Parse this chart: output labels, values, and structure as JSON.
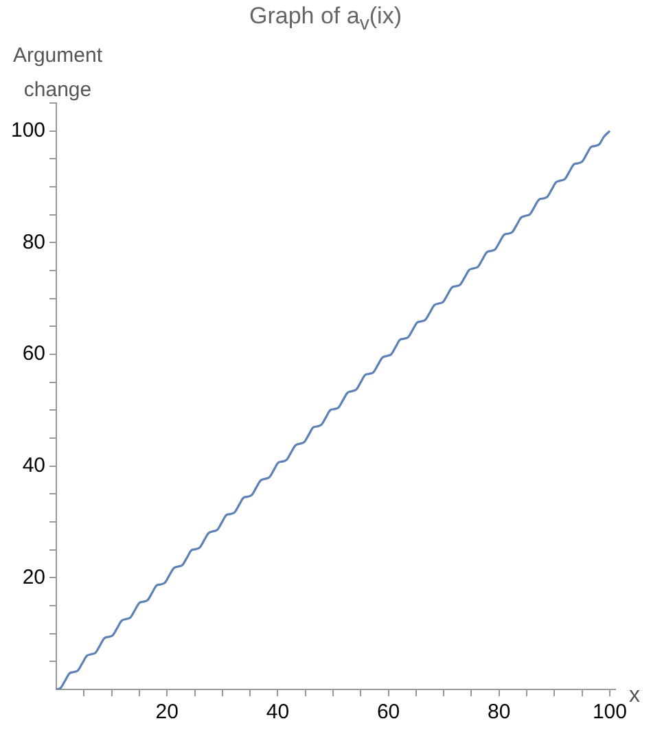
{
  "chart_data": {
    "type": "line",
    "title": "Graph of a$_{v}$(ix)",
    "xlabel": "x",
    "ylabel": "Argument change",
    "x": [
      0,
      0.8,
      1.6,
      2.4,
      3.1,
      3.9,
      4.7,
      5.5,
      6.3,
      7.1,
      7.9,
      8.7,
      9.4,
      10.2,
      11.0,
      11.8,
      12.6,
      13.4,
      14.2,
      15.0,
      15.7,
      16.5,
      17.3,
      18.1,
      18.8,
      19.6,
      20.4,
      21.2,
      22.0,
      22.8,
      23.6,
      24.4,
      25.1,
      25.9,
      26.7,
      27.5,
      28.3,
      29.1,
      29.9,
      30.7,
      31.4,
      32.2,
      33.0,
      33.8,
      34.5,
      35.3,
      36.1,
      36.9,
      37.7,
      38.5,
      39.3,
      40.1,
      40.8,
      41.6,
      42.4,
      43.2,
      44.0,
      44.8,
      45.6,
      46.4,
      47.1,
      47.9,
      48.7,
      49.5,
      50.2,
      51.0,
      51.8,
      52.6,
      53.4,
      54.2,
      55.0,
      55.8,
      56.5,
      57.3,
      58.1,
      58.9,
      59.7,
      60.5,
      61.3,
      62.1,
      62.8,
      63.6,
      64.4,
      65.2,
      65.9,
      66.7,
      67.5,
      68.3,
      69.1,
      69.9,
      70.7,
      71.5,
      72.2,
      73.0,
      73.8,
      74.6,
      75.4,
      76.2,
      77.0,
      77.8,
      78.5,
      79.3,
      80.1,
      80.9,
      81.6,
      82.4,
      83.2,
      84.0,
      84.8,
      85.6,
      86.4,
      87.2,
      87.9,
      88.7,
      89.5,
      90.3,
      91.1,
      91.9,
      92.7,
      93.5,
      94.2,
      95.0,
      95.8,
      96.6,
      97.3,
      98.1,
      98.9,
      100
    ],
    "series": [
      {
        "color": "#5e81b5",
        "values": [
          0,
          0.3,
          1.6,
          2.9,
          3.1,
          3.4,
          4.7,
          6.0,
          6.3,
          6.6,
          7.9,
          9.2,
          9.4,
          9.7,
          11.0,
          12.3,
          12.6,
          12.9,
          14.2,
          15.5,
          15.7,
          16.0,
          17.3,
          18.6,
          18.8,
          19.1,
          20.4,
          21.7,
          22.0,
          22.3,
          23.6,
          24.9,
          25.1,
          25.4,
          26.7,
          28.0,
          28.3,
          28.6,
          29.9,
          31.2,
          31.4,
          31.7,
          33.0,
          34.3,
          34.5,
          34.8,
          36.1,
          37.4,
          37.7,
          38.0,
          39.3,
          40.6,
          40.8,
          41.1,
          42.4,
          43.7,
          44.0,
          44.3,
          45.6,
          46.9,
          47.1,
          47.4,
          48.7,
          50.0,
          50.2,
          50.5,
          51.8,
          53.1,
          53.4,
          53.7,
          55.0,
          56.3,
          56.5,
          56.8,
          58.1,
          59.4,
          59.7,
          60.0,
          61.3,
          62.6,
          62.8,
          63.1,
          64.4,
          65.7,
          65.9,
          66.2,
          67.5,
          68.8,
          69.1,
          69.4,
          70.7,
          72.0,
          72.2,
          72.5,
          73.8,
          75.1,
          75.4,
          75.7,
          77.0,
          78.3,
          78.5,
          78.8,
          80.1,
          81.4,
          81.6,
          81.9,
          83.2,
          84.5,
          84.8,
          85.1,
          86.4,
          87.7,
          87.9,
          88.2,
          89.5,
          90.8,
          91.1,
          91.4,
          92.7,
          94.0,
          94.2,
          94.5,
          95.8,
          97.1,
          97.3,
          97.6,
          98.9,
          100
        ]
      }
    ],
    "xlim": [
      0,
      101
    ],
    "ylim": [
      0,
      105
    ],
    "xticks": [
      {
        "value": 5,
        "label": null
      },
      {
        "value": 10,
        "label": null
      },
      {
        "value": 15,
        "label": null
      },
      20,
      {
        "value": 25,
        "label": null
      },
      {
        "value": 30,
        "label": null
      },
      {
        "value": 35,
        "label": null
      },
      40,
      {
        "value": 45,
        "label": null
      },
      {
        "value": 50,
        "label": null
      },
      {
        "value": 55,
        "label": null
      },
      60,
      {
        "value": 65,
        "label": null
      },
      {
        "value": 70,
        "label": null
      },
      {
        "value": 75,
        "label": null
      },
      80,
      {
        "value": 85,
        "label": null
      },
      {
        "value": 90,
        "label": null
      },
      {
        "value": 95,
        "label": null
      },
      100
    ],
    "yticks": [
      {
        "value": 5,
        "label": null
      },
      {
        "value": 10,
        "label": null
      },
      {
        "value": 15,
        "label": null
      },
      20,
      {
        "value": 25,
        "label": null
      },
      {
        "value": 30,
        "label": null
      },
      {
        "value": 35,
        "label": null
      },
      40,
      {
        "value": 45,
        "label": null
      },
      {
        "value": 50,
        "label": null
      },
      {
        "value": 55,
        "label": null
      },
      60,
      {
        "value": 65,
        "label": null
      },
      {
        "value": 70,
        "label": null
      },
      {
        "value": 75,
        "label": null
      },
      80,
      {
        "value": 85,
        "label": null
      },
      {
        "value": 90,
        "label": null
      },
      {
        "value": 95,
        "label": null
      },
      100,
      {
        "value": 105,
        "label": null
      }
    ],
    "grid": false,
    "legend": false,
    "marker": "none",
    "line_style": "solid"
  }
}
